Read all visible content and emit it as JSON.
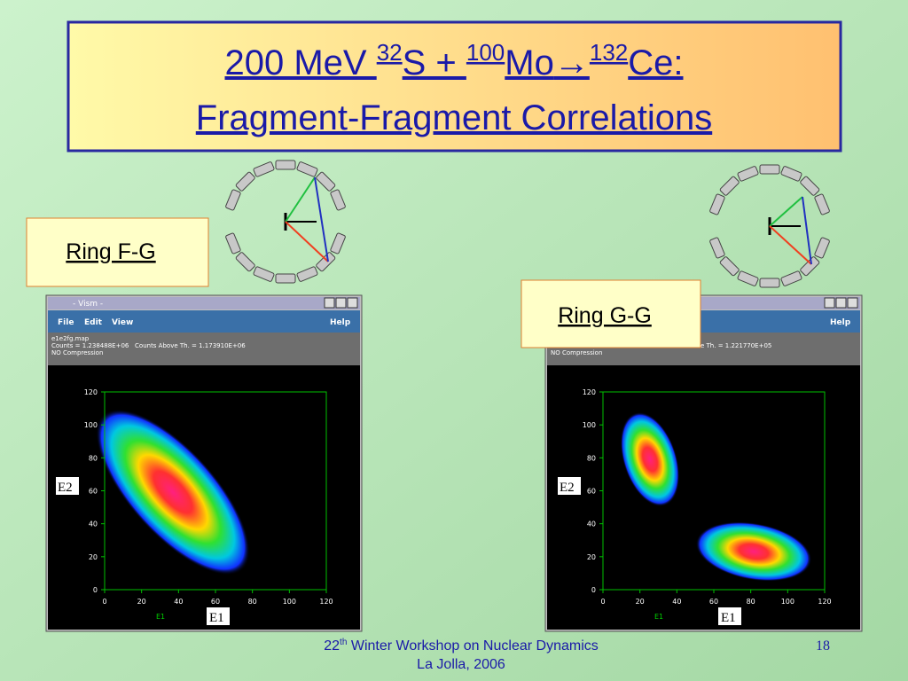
{
  "title": {
    "line1": {
      "t1": "200 MeV ",
      "sup1": "32",
      "t2": "S + ",
      "sup2": "100",
      "t3": "Mo",
      "arrow": "→",
      "sup3": "132",
      "t4": "Ce:"
    },
    "line2": "Fragment-Fragment Correlations"
  },
  "labels": {
    "ring_fg": "Ring F-G",
    "ring_gg": "Ring G-G"
  },
  "left_window": {
    "title": "- Vism -",
    "menu": [
      "File",
      "Edit",
      "View"
    ],
    "help": "Help",
    "info": [
      "e1e2fg.map",
      "Counts = 1.238488E+06   Counts Above Th. = 1.173910E+06",
      "NO Compression"
    ],
    "plot": {
      "xticks": [
        0,
        20,
        40,
        60,
        80,
        100,
        120
      ],
      "yticks": [
        0,
        20,
        40,
        60,
        80,
        100,
        120
      ],
      "x_label": "E1"
    },
    "overlay_y": "E2",
    "overlay_x": "E1"
  },
  "right_window": {
    "help": "Help",
    "info": [
      "e Th. = 1.221770E+05",
      "NO Compression"
    ],
    "plot": {
      "xticks": [
        0,
        20,
        40,
        60,
        80,
        100,
        120
      ],
      "yticks": [
        0,
        20,
        40,
        60,
        80,
        100,
        120
      ],
      "x_label": "E1"
    },
    "overlay_y": "E2",
    "overlay_x": "E1"
  },
  "footer": {
    "sup_num": "22",
    "sup": "th",
    "line1": " Winter Workshop on Nuclear Dynamics",
    "line2": "La Jolla, 2006",
    "page": "18"
  }
}
